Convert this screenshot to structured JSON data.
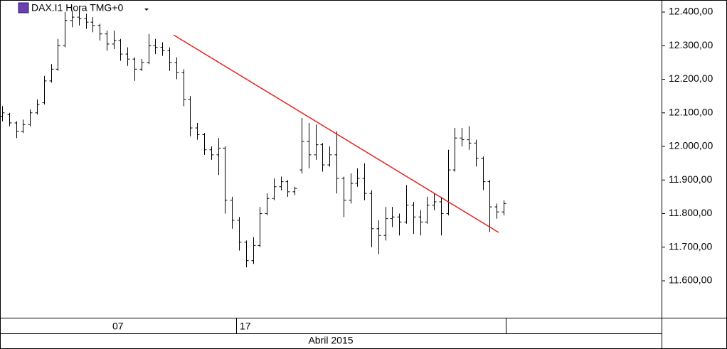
{
  "chart_data": {
    "type": "ohlc",
    "title": "DAX.I1 Hora TMG+0",
    "color": "#000000",
    "open": [
      12090,
      12095,
      12070,
      12045,
      12065,
      12100,
      12130,
      12195,
      12230,
      12300,
      12375,
      12385,
      12380,
      12370,
      12360,
      12335,
      12305,
      12315,
      12275,
      12260,
      12230,
      12250,
      12300,
      12295,
      12285,
      12250,
      12220,
      12140,
      12055,
      12035,
      11990,
      11975,
      11995,
      11840,
      11780,
      11715,
      11660,
      11705,
      11800,
      11845,
      11880,
      11895,
      11865,
      11930,
      12015,
      11975,
      12005,
      11945,
      11975,
      11905,
      11840,
      11890,
      11905,
      11860,
      11755,
      11735,
      11785,
      11790,
      11775,
      11825,
      11790,
      11775,
      11825,
      11835,
      11800,
      11930,
      12025,
      12020,
      12010,
      11965,
      11895,
      11820,
      11805
    ],
    "high": [
      12120,
      12100,
      12075,
      12080,
      12110,
      12140,
      12210,
      12245,
      12320,
      12400,
      12405,
      12410,
      12395,
      12385,
      12365,
      12345,
      12345,
      12320,
      12295,
      12265,
      12260,
      12335,
      12320,
      12310,
      12295,
      12265,
      12230,
      12150,
      12070,
      12040,
      12000,
      12025,
      12000,
      11850,
      11790,
      11720,
      11730,
      11820,
      11860,
      11905,
      11910,
      11900,
      11880,
      12085,
      12070,
      12065,
      12010,
      12000,
      12045,
      11910,
      11920,
      11935,
      11950,
      11870,
      11780,
      11820,
      11820,
      11800,
      11885,
      11835,
      11810,
      11850,
      11860,
      11850,
      11990,
      12055,
      12055,
      12060,
      12020,
      11970,
      11900,
      11830,
      11840
    ],
    "low": [
      12075,
      12060,
      12025,
      12040,
      12060,
      12095,
      12125,
      12190,
      12225,
      12295,
      12355,
      12360,
      12350,
      12340,
      12315,
      12285,
      12290,
      12255,
      12240,
      12195,
      12225,
      12245,
      12275,
      12270,
      12225,
      12200,
      12120,
      12030,
      12020,
      11975,
      11960,
      11915,
      11800,
      11755,
      11690,
      11640,
      11650,
      11700,
      11795,
      11840,
      11870,
      11850,
      11855,
      11920,
      11935,
      11960,
      11925,
      11940,
      11860,
      11790,
      11830,
      11880,
      11840,
      11700,
      11680,
      11720,
      11760,
      11735,
      11770,
      11740,
      11735,
      11770,
      11810,
      11735,
      11795,
      11925,
      12000,
      11990,
      11940,
      11870,
      11745,
      11785,
      11795
    ],
    "close": [
      12100,
      12070,
      12045,
      12065,
      12100,
      12125,
      12195,
      12230,
      12300,
      12375,
      12385,
      12380,
      12370,
      12360,
      12335,
      12305,
      12315,
      12275,
      12260,
      12230,
      12250,
      12300,
      12295,
      12285,
      12250,
      12220,
      12140,
      12055,
      12035,
      11990,
      11975,
      11995,
      11840,
      11780,
      11715,
      11660,
      11705,
      11800,
      11845,
      11880,
      11895,
      11865,
      11875,
      12015,
      11975,
      12005,
      11945,
      11975,
      11905,
      11840,
      11890,
      11905,
      11860,
      11755,
      11735,
      11785,
      11790,
      11775,
      11825,
      11790,
      11775,
      11825,
      11835,
      11800,
      11930,
      12025,
      12020,
      12010,
      11965,
      11895,
      11820,
      11805,
      11830
    ],
    "trendline": {
      "color": "#e8211b",
      "values": [
        12332,
        11744
      ]
    },
    "ylim": [
      11490,
      12436
    ],
    "yticks": [
      {
        "value": 12400,
        "label": "12.400,00"
      },
      {
        "value": 12300,
        "label": "12.300,00"
      },
      {
        "value": 12200,
        "label": "12.200,00"
      },
      {
        "value": 12100,
        "label": "12.100,00"
      },
      {
        "value": 12000,
        "label": "12.000,00"
      },
      {
        "value": 11900,
        "label": "11.900,00"
      },
      {
        "value": 11800,
        "label": "11.800,00"
      },
      {
        "value": 11700,
        "label": "11.700,00"
      },
      {
        "value": 11600,
        "label": "11.600,00"
      }
    ],
    "day_labels": [
      "07",
      "17"
    ],
    "month_label": "Abril 2015"
  }
}
